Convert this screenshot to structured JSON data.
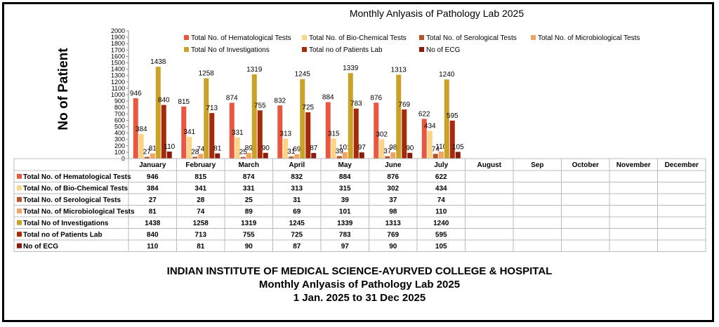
{
  "chart_data": {
    "type": "bar",
    "title": "Monthly Anlyasis of Pathology Lab  2025",
    "ylabel": "No of Patient",
    "ylim": [
      0,
      2000
    ],
    "yticks": [
      0,
      100,
      200,
      300,
      400,
      500,
      600,
      700,
      800,
      900,
      1000,
      1100,
      1200,
      1300,
      1400,
      1500,
      1600,
      1700,
      1800,
      1900,
      2000
    ],
    "grid": false,
    "legend": "top",
    "categories": [
      "January",
      "February",
      "March",
      "April",
      "May",
      "June",
      "July",
      "August",
      "Sep",
      "October",
      "November",
      "December"
    ],
    "series": [
      {
        "name": "Total No. of Hematological Tests",
        "color": "#E9573F",
        "values": [
          946,
          815,
          874,
          832,
          884,
          876,
          622,
          null,
          null,
          null,
          null,
          null
        ]
      },
      {
        "name": "Total No. of Bio-Chemical Tests",
        "color": "#FDD386",
        "values": [
          384,
          341,
          331,
          313,
          315,
          302,
          434,
          null,
          null,
          null,
          null,
          null
        ]
      },
      {
        "name": "Total No. of Serological Tests",
        "color": "#B4532A",
        "values": [
          27,
          28,
          25,
          31,
          39,
          37,
          74,
          null,
          null,
          null,
          null,
          null
        ]
      },
      {
        "name": "Total No. of Microbiological Tests",
        "color": "#F4A261",
        "values": [
          81,
          74,
          89,
          69,
          101,
          98,
          110,
          null,
          null,
          null,
          null,
          null
        ]
      },
      {
        "name": "Total No of  Investigations",
        "color": "#C9A227",
        "values": [
          1438,
          1258,
          1319,
          1245,
          1339,
          1313,
          1240,
          null,
          null,
          null,
          null,
          null
        ]
      },
      {
        "name": "Total no of Patients Lab",
        "color": "#A52A0A",
        "values": [
          840,
          713,
          755,
          725,
          783,
          769,
          595,
          null,
          null,
          null,
          null,
          null
        ]
      },
      {
        "name": "No of ECG",
        "color": "#8B1A0A",
        "values": [
          110,
          81,
          90,
          87,
          97,
          90,
          105,
          null,
          null,
          null,
          null,
          null
        ]
      }
    ]
  },
  "footer": {
    "line1": "INDIAN INSTITUTE OF MEDICAL SCIENCE-AYURVED COLLEGE & HOSPITAL",
    "line2": "Monthly Anlyasis of Pathology Lab  2025",
    "line3": "1 Jan. 2025 to 31 Dec 2025"
  }
}
